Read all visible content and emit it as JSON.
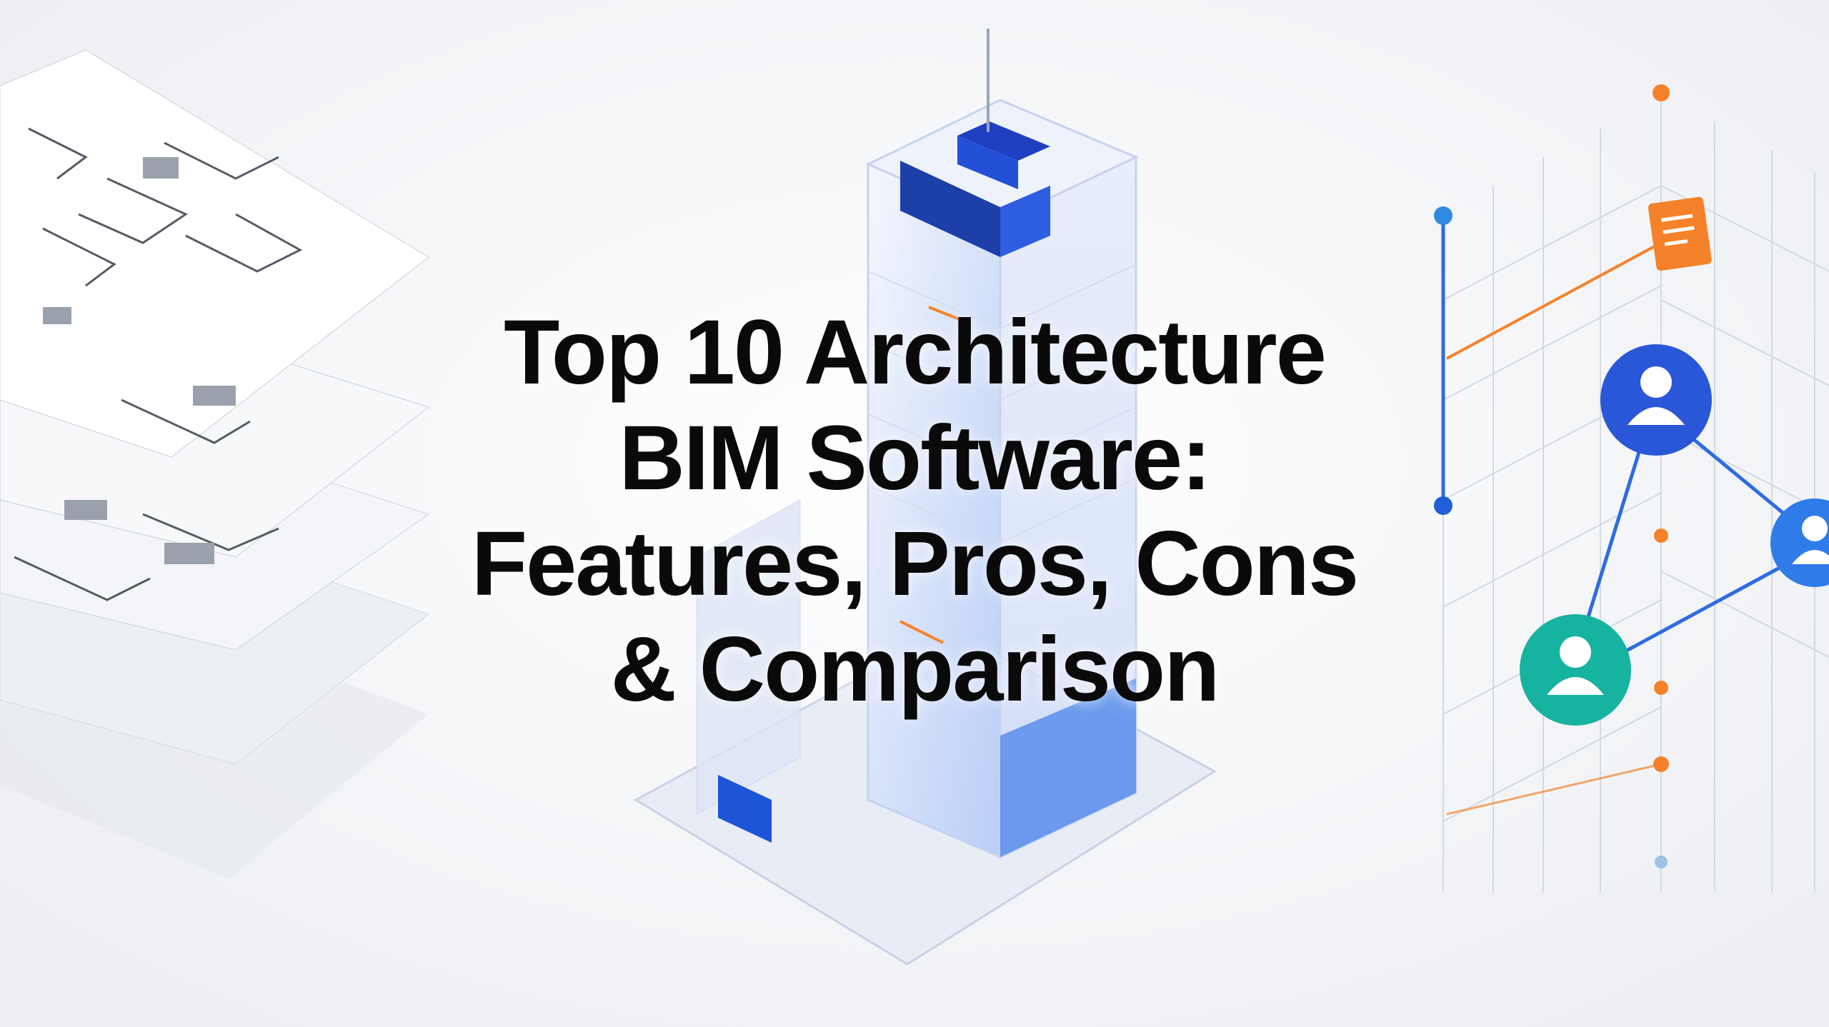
{
  "title": {
    "lines": [
      "Top 10 Architecture",
      "BIM Software:",
      "Features, Pros, Cons",
      "& Comparison"
    ]
  },
  "colors": {
    "background": "#f2f3f6",
    "title_text": "#0a0a0a",
    "accent_blue": "#2f5fe0",
    "accent_orange": "#f5822a",
    "accent_teal": "#16b3a0"
  },
  "icons": [
    "floor-plan-layers",
    "building-tower",
    "user-icon",
    "document-icon"
  ]
}
